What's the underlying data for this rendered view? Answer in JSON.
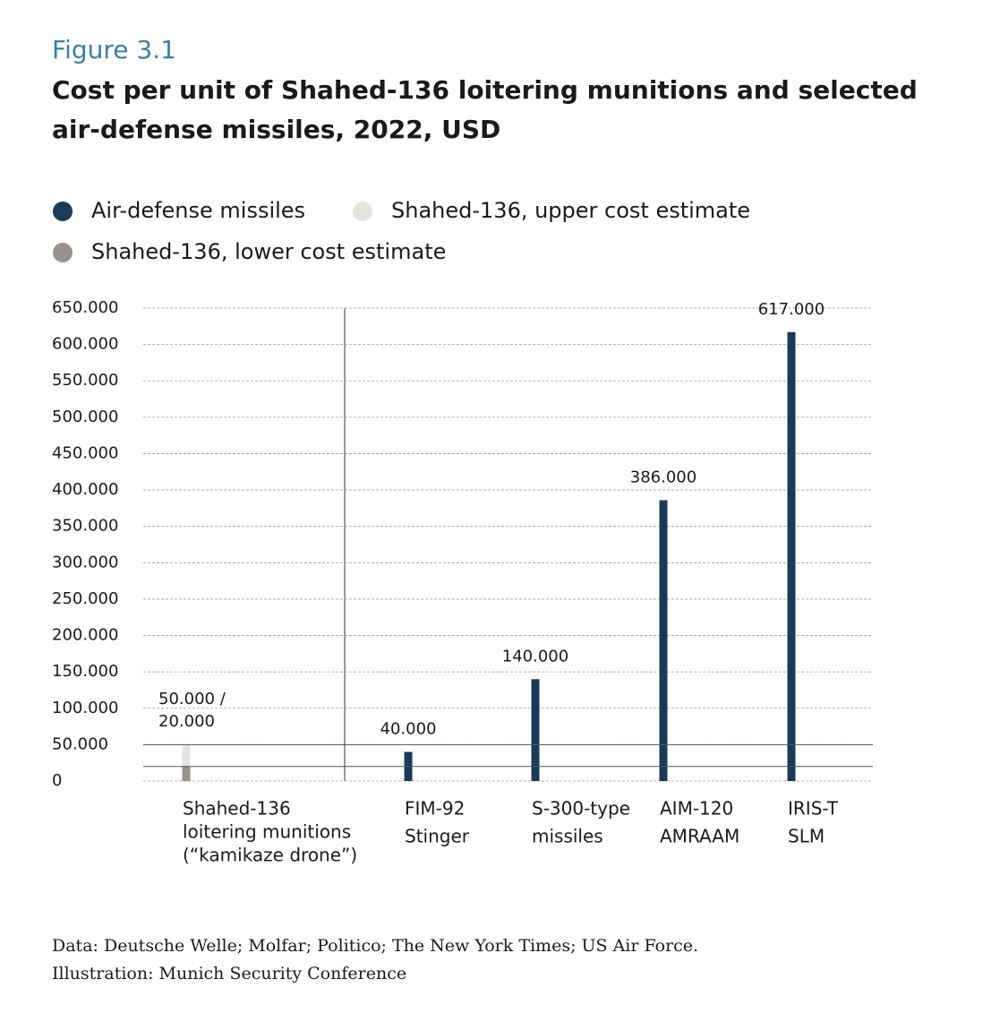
{
  "chart_data": {
    "type": "bar",
    "figure_label": "Figure 3.1",
    "title": [
      "Cost per unit of Shahed-136 loitering munitions and selected",
      "air-defense missiles, 2022, USD"
    ],
    "categories": [
      [
        "Shahed-136",
        "loitering munitions",
        "(“kamikaze drone”)"
      ],
      [
        "FIM-92",
        "Stinger"
      ],
      [
        "S-300-type",
        "missiles"
      ],
      [
        "AIM-120",
        "AMRAAM"
      ],
      [
        "IRIS-T",
        "SLM"
      ]
    ],
    "series": [
      {
        "name": "Air-defense missiles",
        "color": "#1b3a57",
        "values": [
          null,
          40000,
          140000,
          386000,
          617000
        ],
        "value_labels": [
          null,
          "40.000",
          "140.000",
          "386.000",
          "617.000"
        ]
      },
      {
        "name": "Shahed-136, upper cost estimate",
        "color": "#e6e4e1",
        "values": [
          50000,
          null,
          null,
          null,
          null
        ],
        "value_labels": [
          "50.000 /",
          null,
          null,
          null,
          null
        ]
      },
      {
        "name": "Shahed-136, lower cost estimate",
        "color": "#9b928d",
        "values": [
          20000,
          null,
          null,
          null,
          null
        ],
        "value_labels": [
          "20.000",
          null,
          null,
          null,
          null
        ]
      }
    ],
    "ylim": [
      0,
      650000
    ],
    "yticks": [
      0,
      {
        "value": 50000,
        "label": "50.000"
      },
      {
        "value": 100000,
        "label": "100.000"
      },
      {
        "value": 150000,
        "label": "150.000"
      },
      {
        "value": 200000,
        "label": "200.000"
      },
      {
        "value": 250000,
        "label": "250.000"
      },
      {
        "value": 300000,
        "label": "300.000"
      },
      {
        "value": 350000,
        "label": "350.000"
      },
      {
        "value": 400000,
        "label": "400.000"
      },
      {
        "value": 450000,
        "label": "450.000"
      },
      {
        "value": 500000,
        "label": "500.000"
      },
      {
        "value": 550000,
        "label": "550.000"
      },
      {
        "value": 600000,
        "label": "600.000"
      },
      {
        "value": 650000,
        "label": "650.000"
      }
    ],
    "grid": true,
    "source": [
      "Data: Deutsche Welle; Molfar; Politico; The New York Times; US Air Force.",
      "Illustration: Munich Security Conference"
    ]
  }
}
